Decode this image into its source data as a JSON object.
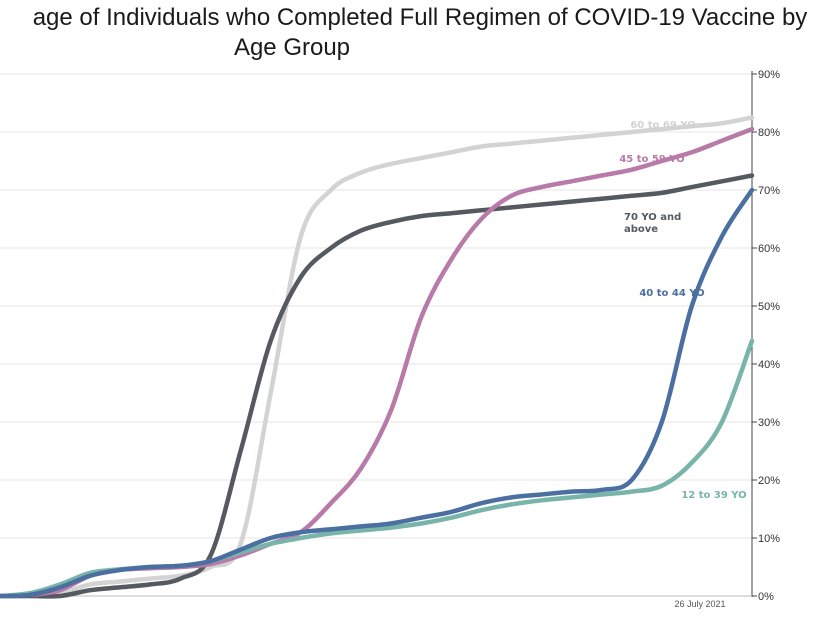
{
  "chart_data": {
    "type": "line",
    "title_lines": [
      "age of Individuals who Completed Full Regimen of COVID-19 Vaccine by",
      "Age Group"
    ],
    "yaxis_position": "right",
    "ylim": [
      0,
      90
    ],
    "yticks": [
      0,
      10,
      20,
      30,
      40,
      50,
      60,
      70,
      80,
      90
    ],
    "ytick_labels": [
      "0%",
      "10%",
      "20%",
      "30%",
      "40%",
      "50%",
      "60%",
      "70%",
      "80%",
      "90%"
    ],
    "grid": true,
    "date_label": "26 July 2021",
    "x": [
      0,
      10,
      20,
      30,
      40,
      50,
      60,
      70,
      80,
      90,
      100,
      110,
      120,
      130,
      140,
      150,
      160,
      170,
      180,
      190,
      200,
      210,
      220,
      230,
      240,
      250
    ],
    "series": [
      {
        "name": "60 to 69 YO",
        "color": "#d3d3d3",
        "values": [
          0,
          0,
          0.5,
          2,
          2.5,
          3,
          3.5,
          5,
          9,
          35,
          62,
          70,
          73,
          74.5,
          75.5,
          76.5,
          77.5,
          78,
          78.5,
          79,
          79.5,
          80,
          80.5,
          81,
          81.5,
          82.5
        ]
      },
      {
        "name": "45 to 59 YO",
        "color": "#b87aa8",
        "values": [
          0,
          0.2,
          1,
          3.5,
          4.5,
          4.8,
          5,
          5.5,
          7,
          9,
          11,
          16,
          22,
          32,
          48,
          58,
          65,
          69,
          70.5,
          71.5,
          72.5,
          73.5,
          75,
          76.5,
          78.5,
          80.5
        ]
      },
      {
        "name": "70 YO and above",
        "color": "#555a60",
        "values": [
          0,
          0,
          0,
          1,
          1.5,
          2,
          3,
          7,
          25,
          44,
          55,
          60,
          63,
          64.5,
          65.5,
          66,
          66.5,
          67,
          67.5,
          68,
          68.5,
          69,
          69.5,
          70.5,
          71.5,
          72.5
        ]
      },
      {
        "name": "40 to 44 YO",
        "color": "#4a6fa0",
        "values": [
          0,
          0.2,
          1.5,
          3.5,
          4.5,
          5,
          5.2,
          6,
          8,
          10,
          11,
          11.5,
          12,
          12.5,
          13.5,
          14.5,
          16,
          17,
          17.5,
          18,
          18.3,
          20,
          30,
          50,
          62,
          70
        ]
      },
      {
        "name": "12 to 39 YO",
        "color": "#78b4aa",
        "values": [
          0,
          0.5,
          2,
          4,
          4.6,
          5,
          5.2,
          6,
          7.5,
          9,
          10,
          10.8,
          11.3,
          11.8,
          12.5,
          13.5,
          14.8,
          15.8,
          16.5,
          17,
          17.5,
          18,
          19,
          23,
          30,
          44
        ]
      }
    ],
    "labels": [
      {
        "series": "60 to 69 YO",
        "text": "60 to 69 YO",
        "lines": [
          "60 to 69 YO"
        ]
      },
      {
        "series": "45 to 59 YO",
        "text": "45 to 59 YO",
        "lines": [
          "45 to 59 YO"
        ]
      },
      {
        "series": "70 YO and above",
        "text": "70 YO and above",
        "lines": [
          "70 YO and",
          "above"
        ]
      },
      {
        "series": "40 to 44 YO",
        "text": "40 to 44 YO",
        "lines": [
          "40 to 44 YO"
        ]
      },
      {
        "series": "12 to 39 YO",
        "text": "12 to 39 YO",
        "lines": [
          "12 to 39 YO"
        ]
      }
    ]
  }
}
